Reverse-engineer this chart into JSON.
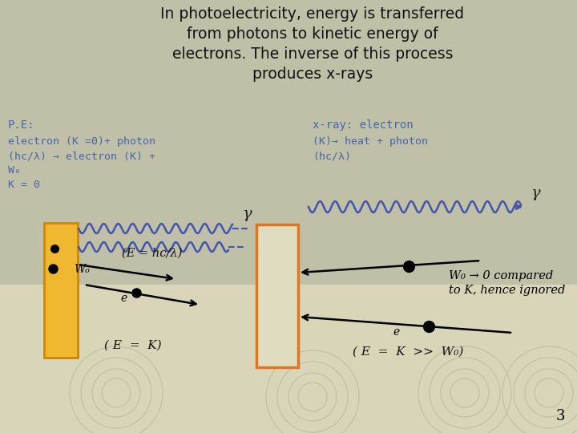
{
  "bg_color": "#c0bfa8",
  "bottom_bg": "#d8d5b8",
  "title_color": "#111111",
  "blue_color": "#4466aa",
  "orange_color": "#dd7722",
  "yellow_color": "#f0b830",
  "yellow_border": "#cc8800",
  "wave_color": "#4455aa",
  "page_num": "3",
  "title_line1": "In photoelectricity, energy is transferred",
  "title_line2": "from photons to kinetic energy of",
  "title_line3": "electrons. The inverse of this process",
  "title_line4": "produces x-rays",
  "pe_label": "P.E:",
  "pe_eq1": "electron (K =0)+ photon",
  "pe_eq2": "(hc/λ) → electron (K) +",
  "pe_eq3": "W₀",
  "pe_k": "K = 0",
  "xray_label": "x-ray: electron",
  "xray_eq1": "(K)→ heat + photon",
  "xray_eq2": "(hc/λ)",
  "photon_label_left": "(E = hc/λ)",
  "eq_left_bottom": "( E  =  K)",
  "w0_label": "W₀",
  "w0_note1": "W₀ → 0 compared",
  "w0_note2": "to K, hence ignored",
  "eq_right_bottom": "( E  =  K  >>  W₀)",
  "gamma_label": "γ",
  "e_label_left": "e",
  "e_label_right": "e"
}
